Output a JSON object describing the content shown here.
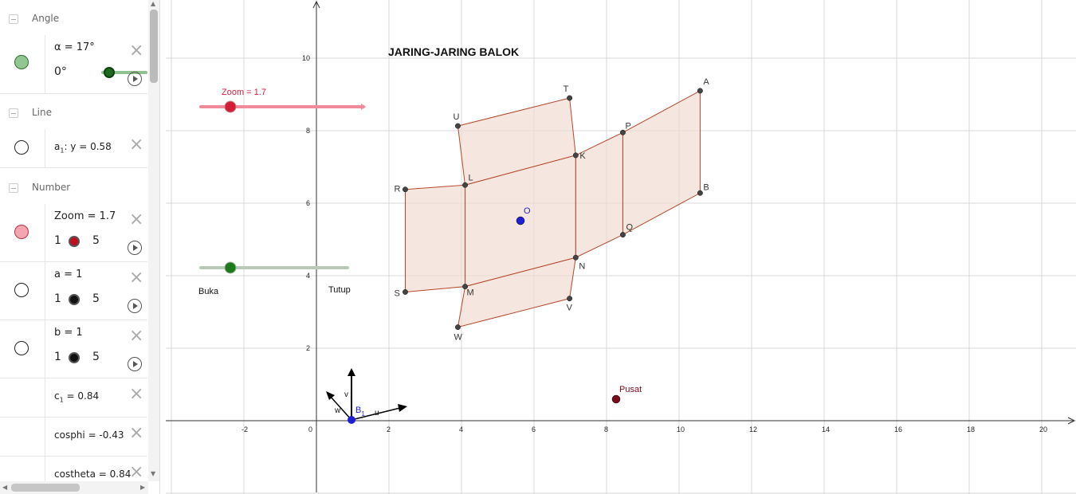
{
  "algebra": {
    "categories": {
      "angle": "Angle",
      "line": "Line",
      "number": "Number"
    },
    "alpha": {
      "label": "α = 17°",
      "min": "0°",
      "marble_color": "#93c593"
    },
    "line_a1": {
      "name": "a",
      "sub": "1",
      "expr": ": y = 0.58"
    },
    "zoom": {
      "label": "Zoom = 1.7",
      "min": "1",
      "max": "5",
      "marble_color": "#f4a5b0"
    },
    "a": {
      "label": "a = 1",
      "min": "1",
      "max": "5"
    },
    "b": {
      "label": "b = 1",
      "min": "1",
      "max": "5"
    },
    "c1": {
      "name": "c",
      "sub": "1",
      "expr": " = 0.84"
    },
    "cosphi": {
      "label": "cosphi  = -0.43"
    },
    "costheta": {
      "label": "costheta  = 0.84"
    }
  },
  "graphics": {
    "title": "JARING-JARING BALOK",
    "zoom_slider_label": "Zoom = 1.7",
    "open_label": "Buka",
    "close_label": "Tutup",
    "center_label": "Pusat",
    "center_point": "O",
    "axis_labels": {
      "u": "u",
      "v": "v",
      "w": "w",
      "origin": "B",
      "origin_sub": "1"
    },
    "x_ticks": [
      "-2",
      "0",
      "2",
      "4",
      "6",
      "8",
      "10",
      "12",
      "14",
      "16",
      "18",
      "20"
    ],
    "y_ticks": [
      "2",
      "4",
      "6",
      "8",
      "10"
    ],
    "points": [
      {
        "name": "A",
        "x": 10.58,
        "y": 9.1
      },
      {
        "name": "B",
        "x": 10.58,
        "y": 6.28
      },
      {
        "name": "P",
        "x": 8.45,
        "y": 7.95
      },
      {
        "name": "Q",
        "x": 8.45,
        "y": 5.13
      },
      {
        "name": "T",
        "x": 6.98,
        "y": 8.9
      },
      {
        "name": "U",
        "x": 3.9,
        "y": 8.13
      },
      {
        "name": "K",
        "x": 7.15,
        "y": 7.32
      },
      {
        "name": "L",
        "x": 4.1,
        "y": 6.5
      },
      {
        "name": "R",
        "x": 2.45,
        "y": 6.38
      },
      {
        "name": "N",
        "x": 7.15,
        "y": 4.5
      },
      {
        "name": "M",
        "x": 4.1,
        "y": 3.7
      },
      {
        "name": "S",
        "x": 2.45,
        "y": 3.55
      },
      {
        "name": "V",
        "x": 6.98,
        "y": 3.37
      },
      {
        "name": "W",
        "x": 3.9,
        "y": 2.58
      }
    ],
    "faces": [
      [
        "U",
        "T",
        "K",
        "L"
      ],
      [
        "R",
        "L",
        "M",
        "S"
      ],
      [
        "L",
        "K",
        "N",
        "M"
      ],
      [
        "K",
        "P",
        "Q",
        "N"
      ],
      [
        "P",
        "A",
        "B",
        "Q"
      ],
      [
        "M",
        "N",
        "V",
        "W"
      ]
    ],
    "colors": {
      "face_fill": "#efd8cf",
      "edge": "#b5472b",
      "point_O": "#1f1fd6",
      "point_pusat": "#7a0a1e",
      "zoom_slider": "#f08a9a",
      "zoom_knob": "#d41d37",
      "open_slider": "#b8c9b8",
      "open_knob": "#1c7a1c",
      "alpha_slider": "#8fc28f",
      "alpha_knob": "#1c6b1c",
      "grid": "#d9d9d9"
    }
  }
}
